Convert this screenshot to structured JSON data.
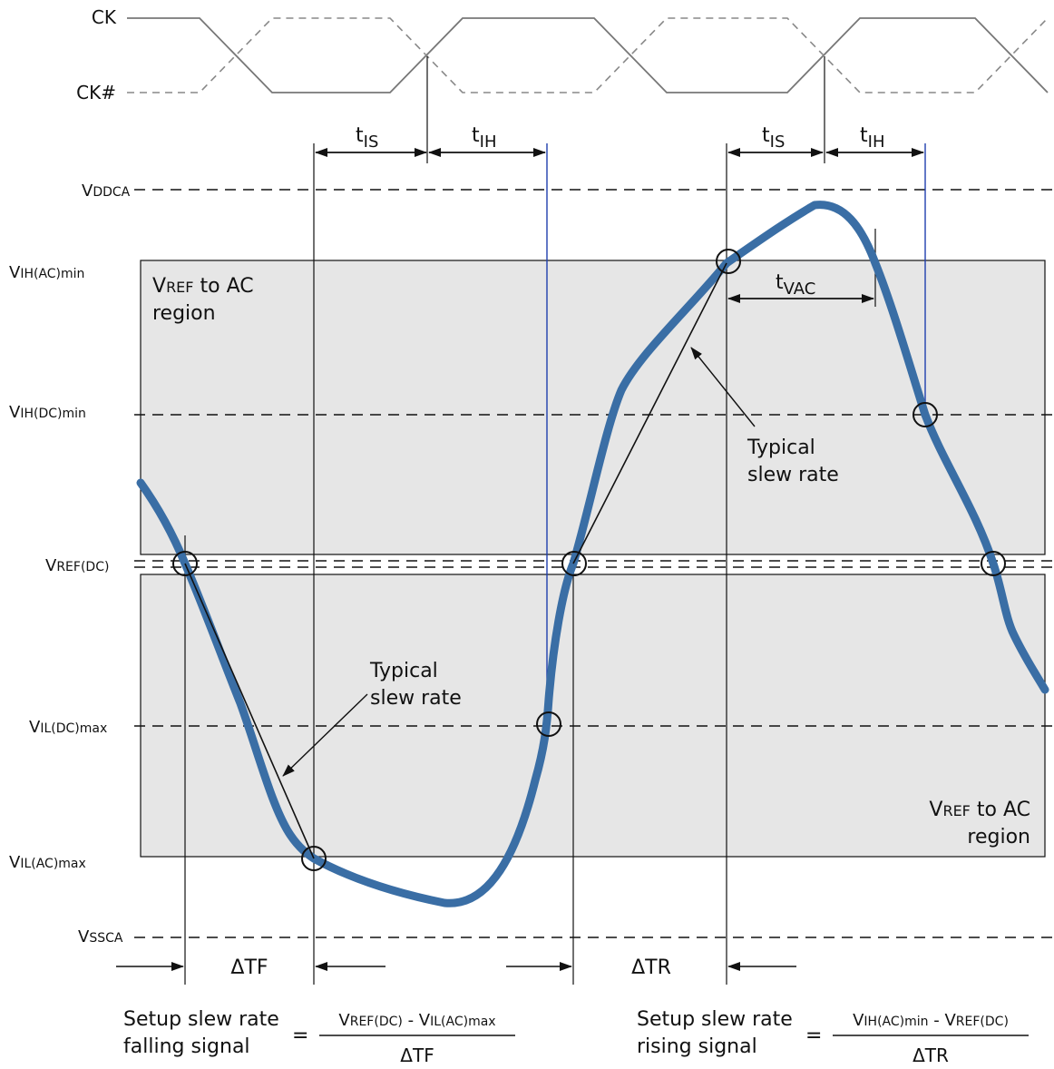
{
  "clock": {
    "ck_label": "CK",
    "ckb_label": "CK#"
  },
  "timing": {
    "t": "t",
    "is_sub": "IS",
    "ih_sub": "IH",
    "vac_sub": "VAC"
  },
  "levels": {
    "vddca": {
      "main": "V",
      "sub": "DDCA"
    },
    "vih_ac": {
      "main": "V",
      "sub": "IH(AC)min"
    },
    "vih_dc": {
      "main": "V",
      "sub": "IH(DC)min"
    },
    "vref_dc": {
      "main": "V",
      "sub": "REF(DC)"
    },
    "vil_dc": {
      "main": "V",
      "sub": "IL(DC)max"
    },
    "vil_ac": {
      "main": "V",
      "sub": "IL(AC)max"
    },
    "vssca": {
      "main": "V",
      "sub": "SSCA"
    }
  },
  "regions": {
    "upper_line1_main": "V",
    "upper_line1_sub": "REF",
    "upper_line1_rest": " to AC",
    "upper_line2": "region",
    "lower_line1_main": "V",
    "lower_line1_sub": "REF",
    "lower_line1_rest": " to AC",
    "lower_line2": "region"
  },
  "annotations": {
    "typical_line1": "Typical",
    "typical_line2": "slew rate",
    "delta_tf": "ΔTF",
    "delta_tr": "ΔTR"
  },
  "formulas": {
    "falling_line1": "Setup slew rate",
    "falling_line2": "falling signal",
    "falling_eq": "=",
    "falling_num_a_main": "V",
    "falling_num_a_sub": "REF(DC)",
    "falling_num_minus": " - ",
    "falling_num_b_main": "V",
    "falling_num_b_sub": "IL(AC)max",
    "falling_den": "ΔTF",
    "rising_line1": "Setup slew rate",
    "rising_line2": "rising signal",
    "rising_eq": "=",
    "rising_num_a_main": "V",
    "rising_num_a_sub": "IH(AC)min",
    "rising_num_minus": " - ",
    "rising_num_b_main": "V",
    "rising_num_b_sub": "REF(DC)",
    "rising_den": "ΔTR"
  },
  "colors": {
    "signal": "#3a6ea5",
    "region_fill": "#e6e6e6",
    "thin_blue": "#1f3fae",
    "line": "#111111"
  }
}
